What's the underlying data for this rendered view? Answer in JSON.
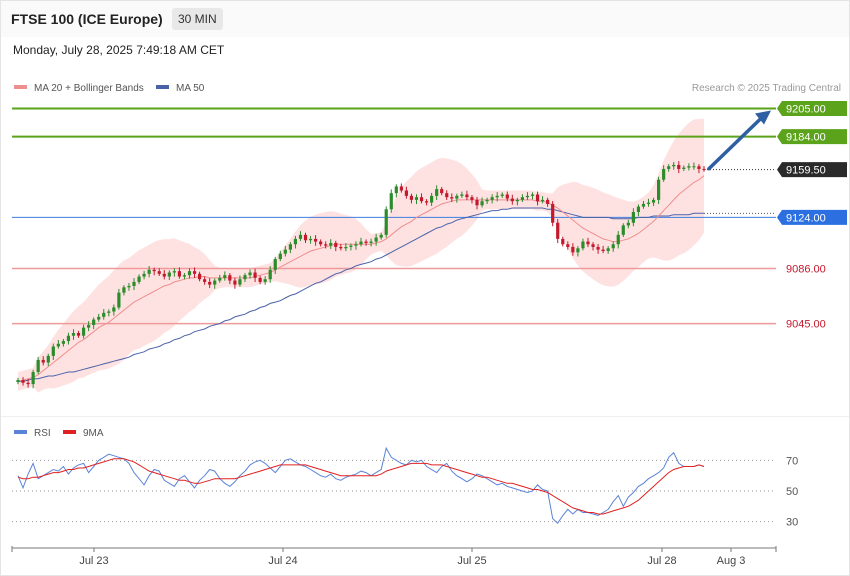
{
  "header": {
    "title": "FTSE 100 (ICE Europe)",
    "timeframe": "30 MIN",
    "datetime": "Monday, July 28, 2025 7:49:18 AM CET"
  },
  "legend": {
    "ma20": "MA 20 + Bollinger Bands",
    "ma50": "MA 50",
    "credit": "Research © 2025 Trading Central"
  },
  "rsi_legend": {
    "rsi": "RSI",
    "ma9": "9MA"
  },
  "colors": {
    "bullish": "#2b8c2b",
    "bearish": "#c4182d",
    "band": "#fdd8d8",
    "ma20": "#ef8e8e",
    "ma50": "#4a62a8",
    "resistance": "#5aa31a",
    "pivot": "#3d7de0",
    "support": "#ee9a9a",
    "rsi": "#5b83d8",
    "rsi_ma": "#e02121",
    "arrow": "#2e5fa3"
  },
  "chart_data": [
    {
      "type": "candlestick",
      "y_range": [
        8980,
        9215
      ],
      "x_ticks": [
        "Jul 23",
        "Jul 24",
        "Jul 25",
        "Jul 28",
        "Aug 3"
      ],
      "levels": [
        {
          "value": 9205.0,
          "label": "9205.00",
          "kind": "resistance"
        },
        {
          "value": 9184.0,
          "label": "9184.00",
          "kind": "resistance"
        },
        {
          "value": 9159.5,
          "label": "9159.50",
          "kind": "last"
        },
        {
          "value": 9124.0,
          "label": "9124.00",
          "kind": "pivot"
        },
        {
          "value": 9086.0,
          "label": "9086.00",
          "kind": "support"
        },
        {
          "value": 9045.0,
          "label": "9045.00",
          "kind": "support"
        }
      ],
      "forecast_arrow": {
        "from": 9159.5,
        "to": 9205.0
      },
      "close_series": [
        9003,
        9001,
        9000,
        9009,
        9018,
        9016,
        9021,
        9028,
        9030,
        9032,
        9036,
        9038,
        9036,
        9042,
        9044,
        9048,
        9050,
        9053,
        9054,
        9057,
        9068,
        9072,
        9073,
        9076,
        9080,
        9082,
        9085,
        9084,
        9082,
        9080,
        9083,
        9084,
        9080,
        9081,
        9084,
        9082,
        9078,
        9076,
        9074,
        9077,
        9079,
        9081,
        9077,
        9074,
        9078,
        9081,
        9083,
        9079,
        9076,
        9078,
        9085,
        9093,
        9097,
        9100,
        9104,
        9108,
        9111,
        9107,
        9108,
        9106,
        9104,
        9103,
        9105,
        9102,
        9101,
        9102,
        9103,
        9104,
        9106,
        9105,
        9106,
        9109,
        9111,
        9130,
        9142,
        9147,
        9144,
        9140,
        9137,
        9139,
        9136,
        9135,
        9140,
        9145,
        9142,
        9139,
        9138,
        9140,
        9141,
        9139,
        9137,
        9133,
        9136,
        9137,
        9139,
        9140,
        9141,
        9138,
        9136,
        9137,
        9139,
        9140,
        9141,
        9136,
        9137,
        9134,
        9120,
        9108,
        9104,
        9102,
        9098,
        9101,
        9106,
        9104,
        9102,
        9100,
        9099,
        9101,
        9104,
        9111,
        9118,
        9120,
        9128,
        9132,
        9134,
        9135,
        9137,
        9152,
        9160,
        9162,
        9163,
        9160,
        9161,
        9162,
        9162,
        9160,
        9159.5
      ],
      "ma20_series": [
        9002,
        9003,
        9004,
        9005,
        9007,
        9010,
        9013,
        9016,
        9019,
        9022,
        9025,
        9028,
        9031,
        9033,
        9036,
        9039,
        9042,
        9044,
        9046,
        9049,
        9052,
        9055,
        9058,
        9061,
        9063,
        9065,
        9067,
        9069,
        9071,
        9073,
        9074,
        9076,
        9077,
        9078,
        9079,
        9079,
        9080,
        9080,
        9079,
        9079,
        9079,
        9079,
        9079,
        9079,
        9079,
        9079,
        9079,
        9080,
        9081,
        9082,
        9083,
        9085,
        9087,
        9089,
        9091,
        9093,
        9095,
        9097,
        9099,
        9100,
        9101,
        9102,
        9103,
        9104,
        9104,
        9104,
        9104,
        9104,
        9104,
        9104,
        9104,
        9105,
        9106,
        9108,
        9111,
        9114,
        9117,
        9119,
        9121,
        9124,
        9126,
        9128,
        9130,
        9132,
        9134,
        9135,
        9136,
        9137,
        9137,
        9137,
        9137,
        9137,
        9137,
        9137,
        9137,
        9137,
        9137,
        9137,
        9137,
        9137,
        9137,
        9137,
        9137,
        9136,
        9136,
        9135,
        9133,
        9131,
        9128,
        9125,
        9122,
        9119,
        9116,
        9114,
        9112,
        9110,
        9108,
        9107,
        9106,
        9106,
        9107,
        9108,
        9110,
        9112,
        9115,
        9118,
        9121,
        9125,
        9129,
        9133,
        9137,
        9141,
        9144,
        9147,
        9150,
        9152,
        9155
      ],
      "ma50_series": [
        9002,
        9002,
        9003,
        9004,
        9004,
        9005,
        9006,
        9006,
        9007,
        9008,
        9009,
        9009,
        9010,
        9011,
        9012,
        9013,
        9014,
        9015,
        9016,
        9017,
        9018,
        9019,
        9020,
        9022,
        9023,
        9024,
        9026,
        9027,
        9028,
        9030,
        9031,
        9033,
        9034,
        9036,
        9037,
        9039,
        9040,
        9041,
        9043,
        9044,
        9045,
        9047,
        9048,
        9050,
        9051,
        9052,
        9054,
        9055,
        9057,
        9058,
        9060,
        9061,
        9062,
        9064,
        9066,
        9067,
        9069,
        9071,
        9073,
        9075,
        9076,
        9078,
        9080,
        9082,
        9083,
        9085,
        9086,
        9088,
        9089,
        9090,
        9091,
        9093,
        9094,
        9096,
        9098,
        9100,
        9102,
        9104,
        9106,
        9108,
        9110,
        9112,
        9114,
        9116,
        9117,
        9119,
        9120,
        9122,
        9123,
        9124,
        9125,
        9126,
        9127,
        9128,
        9129,
        9129,
        9130,
        9130,
        9131,
        9131,
        9131,
        9131,
        9131,
        9131,
        9131,
        9130,
        9130,
        9129,
        9128,
        9127,
        9126,
        9125,
        9124,
        9124,
        9124,
        9124,
        9124,
        9124,
        9123,
        9123,
        9123,
        9123,
        9123,
        9124,
        9124,
        9124,
        9125,
        9125,
        9125,
        9125,
        9126,
        9126,
        9126,
        9126,
        9127,
        9127,
        9127
      ]
    },
    {
      "type": "line",
      "name": "RSI",
      "y_range": [
        20,
        80
      ],
      "y_ticks": [
        70,
        50,
        30
      ],
      "rsi_series": [
        60,
        52,
        61,
        68,
        58,
        60,
        62,
        64,
        63,
        66,
        61,
        65,
        67,
        68,
        62,
        66,
        70,
        72,
        74,
        73,
        72,
        71,
        68,
        62,
        58,
        54,
        60,
        64,
        63,
        57,
        55,
        53,
        58,
        60,
        56,
        52,
        57,
        60,
        64,
        63,
        58,
        55,
        53,
        56,
        60,
        63,
        67,
        69,
        70,
        68,
        65,
        62,
        66,
        70,
        71,
        69,
        67,
        66,
        64,
        62,
        60,
        59,
        61,
        58,
        57,
        59,
        60,
        61,
        63,
        62,
        60,
        62,
        64,
        78,
        72,
        70,
        68,
        67,
        70,
        69,
        70,
        66,
        64,
        62,
        66,
        68,
        63,
        60,
        58,
        56,
        58,
        61,
        60,
        58,
        56,
        54,
        55,
        53,
        52,
        51,
        50,
        49,
        50,
        54,
        51,
        50,
        32,
        29,
        34,
        38,
        35,
        38,
        36,
        36,
        35,
        34,
        36,
        38,
        43,
        47,
        40,
        46,
        49,
        53,
        55,
        58,
        60,
        62,
        65,
        72,
        75,
        68,
        66,
        66,
        66,
        67,
        66
      ],
      "ma9_series": [
        59,
        58,
        58,
        59,
        59,
        60,
        61,
        62,
        62,
        63,
        64,
        64,
        65,
        65,
        66,
        67,
        68,
        69,
        70,
        71,
        71,
        71,
        70,
        69,
        67,
        65,
        63,
        62,
        61,
        60,
        59,
        58,
        57,
        57,
        56,
        55,
        55,
        56,
        57,
        58,
        58,
        58,
        58,
        58,
        59,
        60,
        61,
        62,
        63,
        64,
        65,
        66,
        67,
        67,
        67,
        67,
        67,
        67,
        66,
        65,
        64,
        63,
        62,
        61,
        60,
        60,
        60,
        60,
        60,
        60,
        60,
        60,
        61,
        63,
        64,
        65,
        66,
        67,
        68,
        68,
        68,
        68,
        67,
        67,
        67,
        66,
        65,
        64,
        63,
        62,
        61,
        60,
        59,
        59,
        58,
        57,
        56,
        55,
        55,
        54,
        53,
        52,
        51,
        51,
        50,
        49,
        47,
        45,
        43,
        41,
        39,
        38,
        37,
        36,
        36,
        35,
        35,
        36,
        37,
        38,
        39,
        40,
        42,
        44,
        47,
        50,
        53,
        56,
        59,
        62,
        64,
        65,
        66,
        66,
        66,
        67,
        66
      ]
    }
  ]
}
